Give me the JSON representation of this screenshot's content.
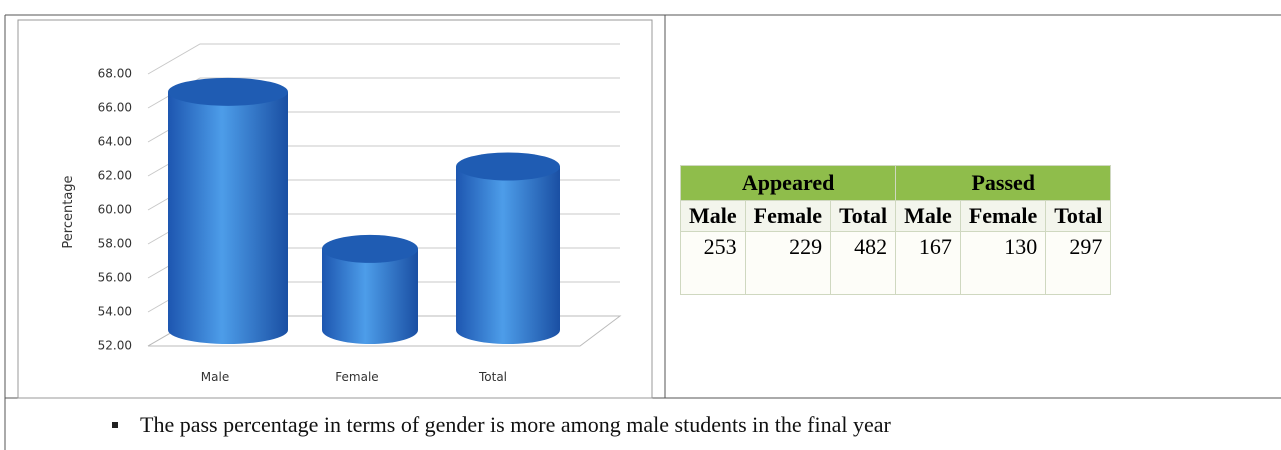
{
  "chart_data": {
    "type": "bar",
    "y_label": "Percentage",
    "categories": [
      "Male",
      "Female",
      "Total"
    ],
    "values": [
      66.01,
      56.77,
      61.62
    ],
    "color": "#2f78d4",
    "ylim": [
      52,
      68
    ],
    "yticks": [
      {
        "value": 52,
        "label": "52.00"
      },
      {
        "value": 54,
        "label": "54.00"
      },
      {
        "value": 56,
        "label": "56.00"
      },
      {
        "value": 58,
        "label": "58.00"
      },
      {
        "value": 60,
        "label": "60.00"
      },
      {
        "value": 62,
        "label": "62.00"
      },
      {
        "value": 64,
        "label": "64.00"
      },
      {
        "value": 66,
        "label": "66.00"
      },
      {
        "value": 68,
        "label": "68.00"
      }
    ],
    "grid": true
  },
  "table": {
    "groups": [
      "Appeared",
      "Passed"
    ],
    "columns": [
      "Male",
      "Female",
      "Total",
      "Male",
      "Female",
      "Total"
    ],
    "rows": [
      [
        253,
        229,
        482,
        167,
        130,
        297
      ]
    ]
  },
  "bullets": [
    "The pass percentage in terms of gender is more among male students in the final year"
  ]
}
